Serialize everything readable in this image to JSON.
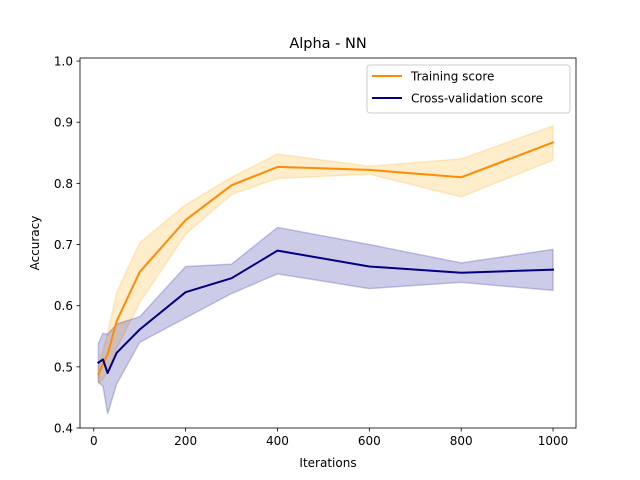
{
  "chart_data": {
    "type": "line",
    "title": "Alpha - NN",
    "xlabel": "Iterations",
    "ylabel": "Accuracy",
    "xlim": [
      -30,
      1050
    ],
    "ylim": [
      0.4,
      1.005
    ],
    "xticks": [
      0,
      200,
      400,
      600,
      800,
      1000
    ],
    "xtick_labels": [
      "0",
      "200",
      "400",
      "600",
      "800",
      "1000"
    ],
    "yticks": [
      0.4,
      0.5,
      0.6,
      0.7,
      0.8,
      0.9,
      1.0
    ],
    "ytick_labels": [
      "0.4",
      "0.5",
      "0.6",
      "0.7",
      "0.8",
      "0.9",
      "1.0"
    ],
    "grid": false,
    "legend_position": "top-right",
    "x": [
      10,
      20,
      30,
      50,
      100,
      200,
      300,
      400,
      600,
      800,
      1000
    ],
    "series": [
      {
        "name": "Training score",
        "color": "#ff8c00",
        "fill_color": "#ffa500",
        "values": [
          0.488,
          0.505,
          0.52,
          0.575,
          0.655,
          0.74,
          0.797,
          0.827,
          0.822,
          0.81,
          0.867
        ],
        "upper": [
          0.5,
          0.528,
          0.555,
          0.622,
          0.703,
          0.765,
          0.81,
          0.848,
          0.828,
          0.84,
          0.894
        ],
        "lower": [
          0.472,
          0.48,
          0.49,
          0.53,
          0.605,
          0.717,
          0.782,
          0.808,
          0.815,
          0.778,
          0.838
        ]
      },
      {
        "name": "Cross-validation score",
        "color": "#000080",
        "fill_color": "#00008b",
        "values": [
          0.507,
          0.512,
          0.49,
          0.523,
          0.561,
          0.622,
          0.645,
          0.69,
          0.664,
          0.654,
          0.659
        ],
        "upper": [
          0.538,
          0.555,
          0.553,
          0.57,
          0.582,
          0.664,
          0.668,
          0.728,
          0.7,
          0.67,
          0.692
        ],
        "lower": [
          0.475,
          0.468,
          0.423,
          0.472,
          0.54,
          0.58,
          0.62,
          0.652,
          0.628,
          0.638,
          0.625
        ]
      }
    ]
  }
}
